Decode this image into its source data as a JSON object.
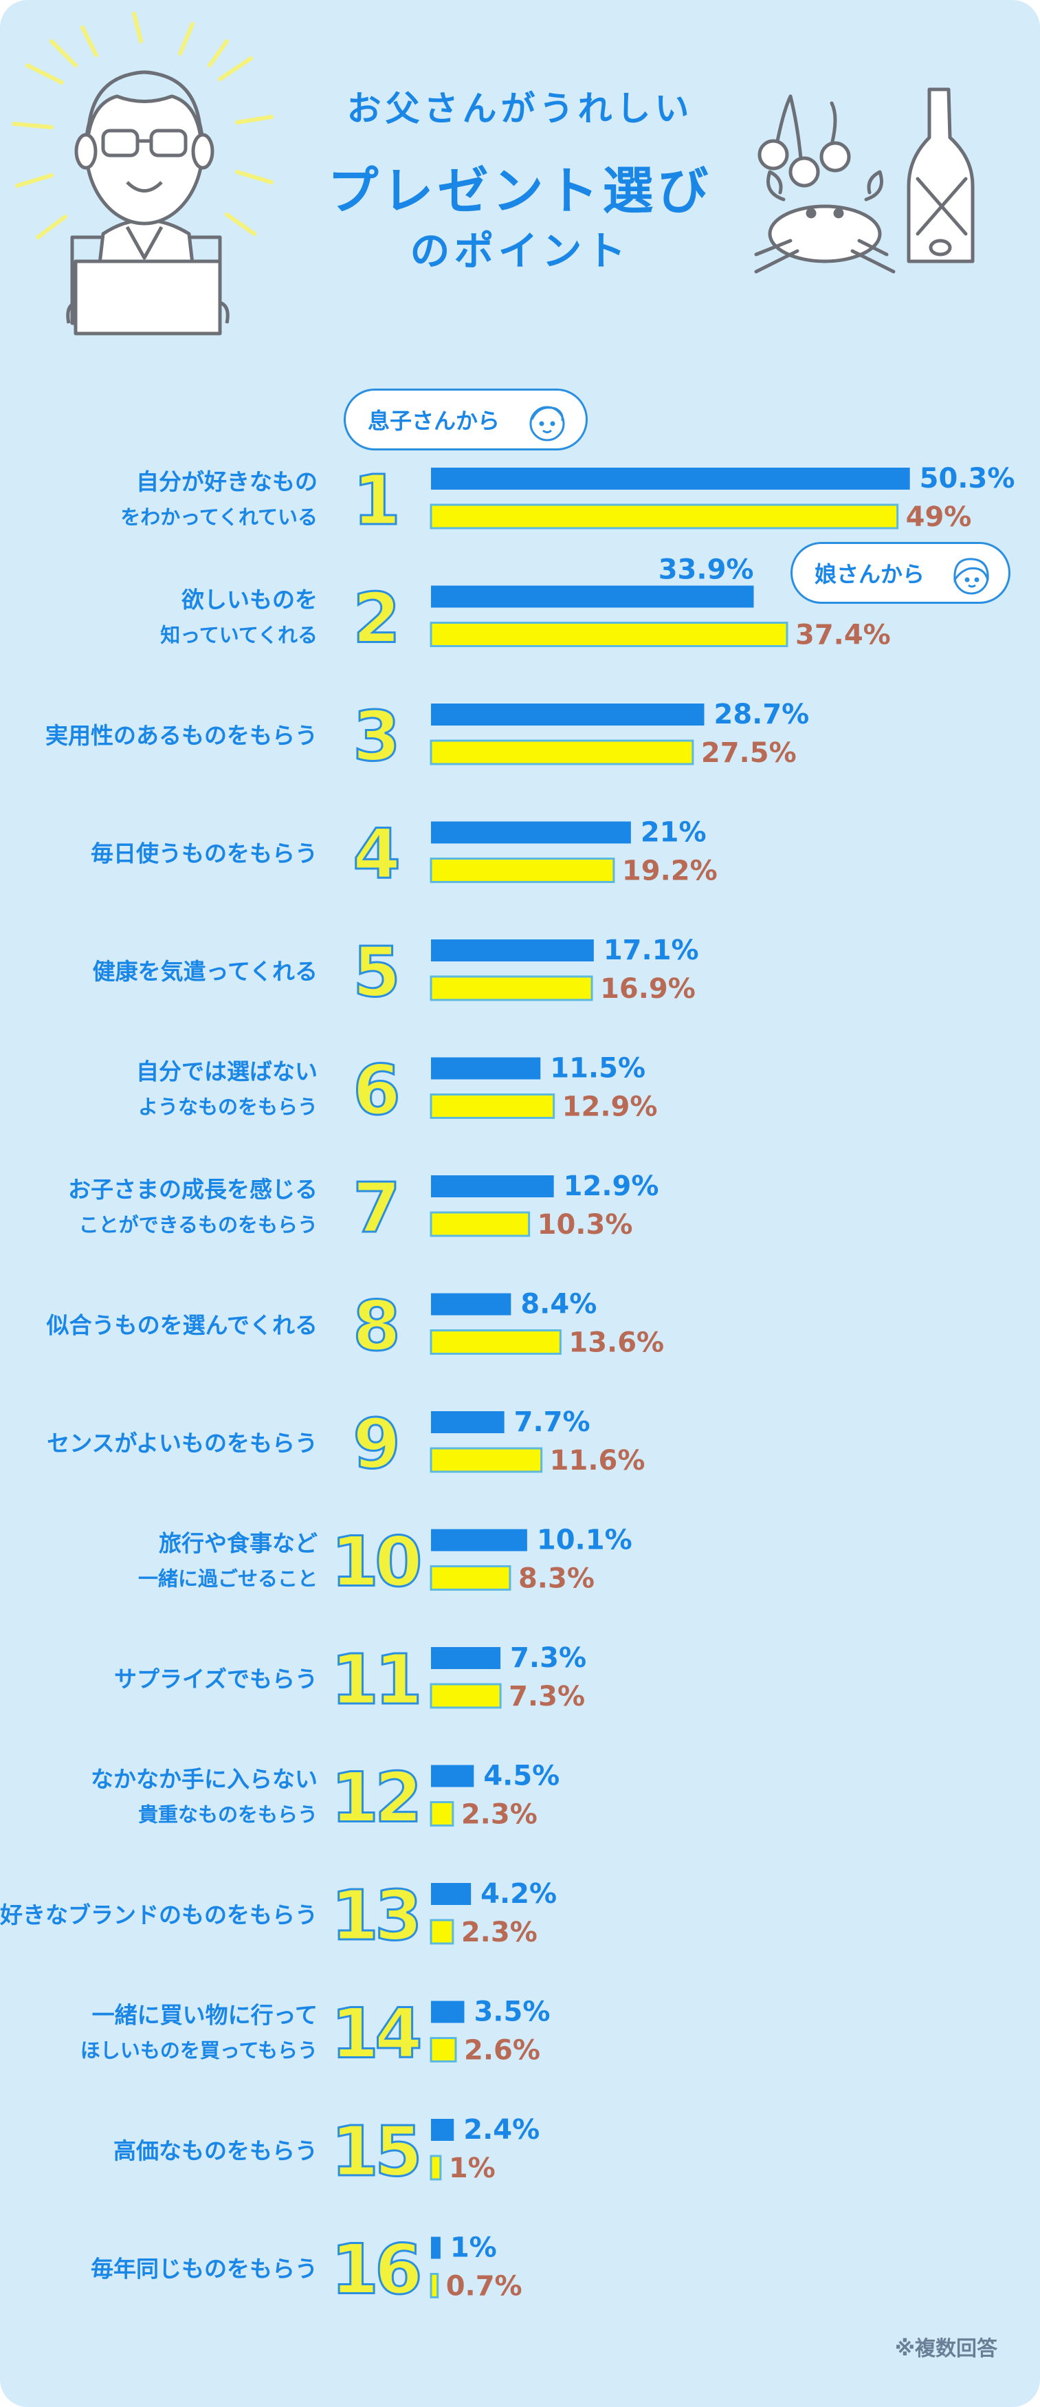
{
  "title": {
    "line1": "お父さんがうれしい",
    "line2": "プレゼント選び",
    "line3": "のポイント"
  },
  "legend": {
    "son": "息子さんから",
    "daughter": "娘さんから"
  },
  "footnote": "※複数回答",
  "colors": {
    "background": "#d4ecfa",
    "son_bar": "#1a86e6",
    "daughter_bar": "#fbf700",
    "daughter_bar_border": "#5bb8de",
    "son_value": "#1a86e6",
    "daughter_value": "#b96a55",
    "rank_number": "#f2f23c",
    "label_text": "#1a86e6"
  },
  "chart_data": {
    "type": "bar",
    "orientation": "horizontal",
    "unit": "%",
    "categories": [
      [
        "自分が好きなもの",
        "をわかってくれている"
      ],
      [
        "欲しいものを",
        "知っていてくれる"
      ],
      [
        "実用性のあるものをもらう"
      ],
      [
        "毎日使うものをもらう"
      ],
      [
        "健康を気遣ってくれる"
      ],
      [
        "自分では選ばない",
        "ようなものをもらう"
      ],
      [
        "お子さまの成長を感じる",
        "ことができるものをもらう"
      ],
      [
        "似合うものを選んでくれる"
      ],
      [
        "センスがよいものをもらう"
      ],
      [
        "旅行や食事など",
        "一緒に過ごせること"
      ],
      [
        "サプライズでもらう"
      ],
      [
        "なかなか手に入らない",
        "貴重なものをもらう"
      ],
      [
        "好きなブランドのものをもらう"
      ],
      [
        "一緒に買い物に行って",
        "ほしいものを買ってもらう"
      ],
      [
        "高価なものをもらう"
      ],
      [
        "毎年同じものをもらう"
      ]
    ],
    "ranks": [
      "1",
      "2",
      "3",
      "4",
      "5",
      "6",
      "7",
      "8",
      "9",
      "10",
      "11",
      "12",
      "13",
      "14",
      "15",
      "16"
    ],
    "series": [
      {
        "name": "息子さんから",
        "values": [
          50.3,
          33.9,
          28.7,
          21,
          17.1,
          11.5,
          12.9,
          8.4,
          7.7,
          10.1,
          7.3,
          4.5,
          4.2,
          3.5,
          2.4,
          1
        ],
        "labels": [
          "50.3%",
          "33.9%",
          "28.7%",
          "21%",
          "17.1%",
          "11.5%",
          "12.9%",
          "8.4%",
          "7.7%",
          "10.1%",
          "7.3%",
          "4.5%",
          "4.2%",
          "3.5%",
          "2.4%",
          "1%"
        ]
      },
      {
        "name": "娘さんから",
        "values": [
          49,
          37.4,
          27.5,
          19.2,
          16.9,
          12.9,
          10.3,
          13.6,
          11.6,
          8.3,
          7.3,
          2.3,
          2.3,
          2.6,
          1,
          0.7
        ],
        "labels": [
          "49%",
          "37.4%",
          "27.5%",
          "19.2%",
          "16.9%",
          "12.9%",
          "10.3%",
          "13.6%",
          "11.6%",
          "8.3%",
          "7.3%",
          "2.3%",
          "2.3%",
          "2.6%",
          "1%",
          "0.7%"
        ]
      }
    ]
  }
}
